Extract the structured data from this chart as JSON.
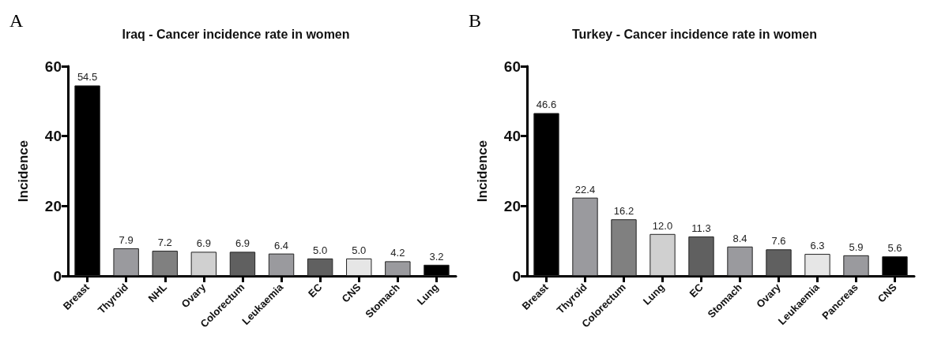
{
  "chart_data": [
    {
      "type": "bar",
      "title": "Iraq - Cancer incidence rate in women",
      "ylabel": "Incidence",
      "annotations": [
        "A"
      ],
      "categories": [
        "Breast",
        "Thyroid",
        "NHL",
        "Ovary",
        "Colorectum",
        "Leukaemia",
        "EC",
        "CNS",
        "Stomach",
        "Lung"
      ],
      "values": [
        54.5,
        7.9,
        7.2,
        6.9,
        6.9,
        6.4,
        5.0,
        5.0,
        4.2,
        3.2
      ],
      "colors": [
        "#000000",
        "#9a9a9e",
        "#808080",
        "#d0d0d0",
        "#606060",
        "#9a9a9e",
        "#606060",
        "#e6e6e6",
        "#9a9a9e",
        "#000000"
      ],
      "value_labels": [
        "54.5",
        "7.9",
        "7.2",
        "6.9",
        "6.9",
        "6.4",
        "5.0",
        "5.0",
        "4.2",
        "3.2"
      ],
      "ylim": [
        0,
        60
      ],
      "yticks": [
        0,
        20,
        40,
        60
      ],
      "grid": false
    },
    {
      "type": "bar",
      "title": "Turkey - Cancer incidence rate in women",
      "ylabel": "Incidence",
      "annotations": [
        "B"
      ],
      "categories": [
        "Breast",
        "Thyroid",
        "Colorectum",
        "Lung",
        "EC",
        "Stomach",
        "Ovary",
        "Leukaemia",
        "Pancreas",
        "CNS"
      ],
      "values": [
        46.6,
        22.4,
        16.2,
        12.0,
        11.3,
        8.4,
        7.6,
        6.3,
        5.9,
        5.6
      ],
      "colors": [
        "#000000",
        "#9a9a9e",
        "#808080",
        "#d0d0d0",
        "#606060",
        "#9a9a9e",
        "#606060",
        "#e6e6e6",
        "#9a9a9e",
        "#000000"
      ],
      "value_labels": [
        "46.6",
        "22.4",
        "16.2",
        "12.0",
        "11.3",
        "8.4",
        "7.6",
        "6.3",
        "5.9",
        "5.6"
      ],
      "ylim": [
        0,
        60
      ],
      "yticks": [
        0,
        20,
        40,
        60
      ],
      "grid": false
    }
  ]
}
